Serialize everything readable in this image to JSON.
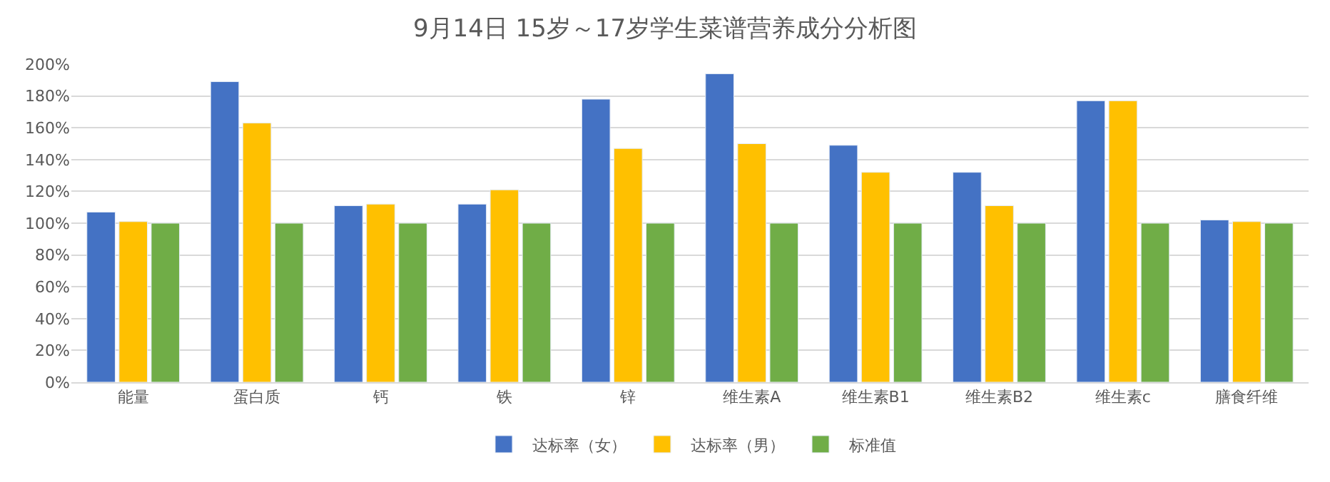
{
  "chart_data": {
    "type": "bar",
    "title": "9月14日 15岁～17岁学生菜谱营养成分分析图",
    "categories": [
      "能量",
      "蛋白质",
      "钙",
      "铁",
      "锌",
      "维生素A",
      "维生素B1",
      "维生素B2",
      "维生素c",
      "膳食纤维"
    ],
    "series": [
      {
        "name": "达标率（女）",
        "color": "#4472c4",
        "values": [
          107,
          189,
          111,
          112,
          178,
          194,
          149,
          132,
          177,
          102
        ]
      },
      {
        "name": "达标率（男）",
        "color": "#ffc000",
        "values": [
          101,
          163,
          112,
          121,
          147,
          150,
          132,
          111,
          177,
          101
        ]
      },
      {
        "name": "标准值",
        "color": "#70ad47",
        "values": [
          100,
          100,
          100,
          100,
          100,
          100,
          100,
          100,
          100,
          100
        ]
      }
    ],
    "ylim": [
      0,
      200
    ],
    "yticks": [
      {
        "value": 0,
        "label": "0%"
      },
      {
        "value": 20,
        "label": "20%"
      },
      {
        "value": 40,
        "label": "40%"
      },
      {
        "value": 60,
        "label": "60%"
      },
      {
        "value": 80,
        "label": "80%"
      },
      {
        "value": 100,
        "label": "100%"
      },
      {
        "value": 120,
        "label": "120%"
      },
      {
        "value": 140,
        "label": "140%"
      },
      {
        "value": 160,
        "label": "160%"
      },
      {
        "value": 180,
        "label": "180%"
      },
      {
        "value": 200,
        "label": "200%"
      }
    ],
    "grid": "y",
    "legend": "bottom"
  }
}
